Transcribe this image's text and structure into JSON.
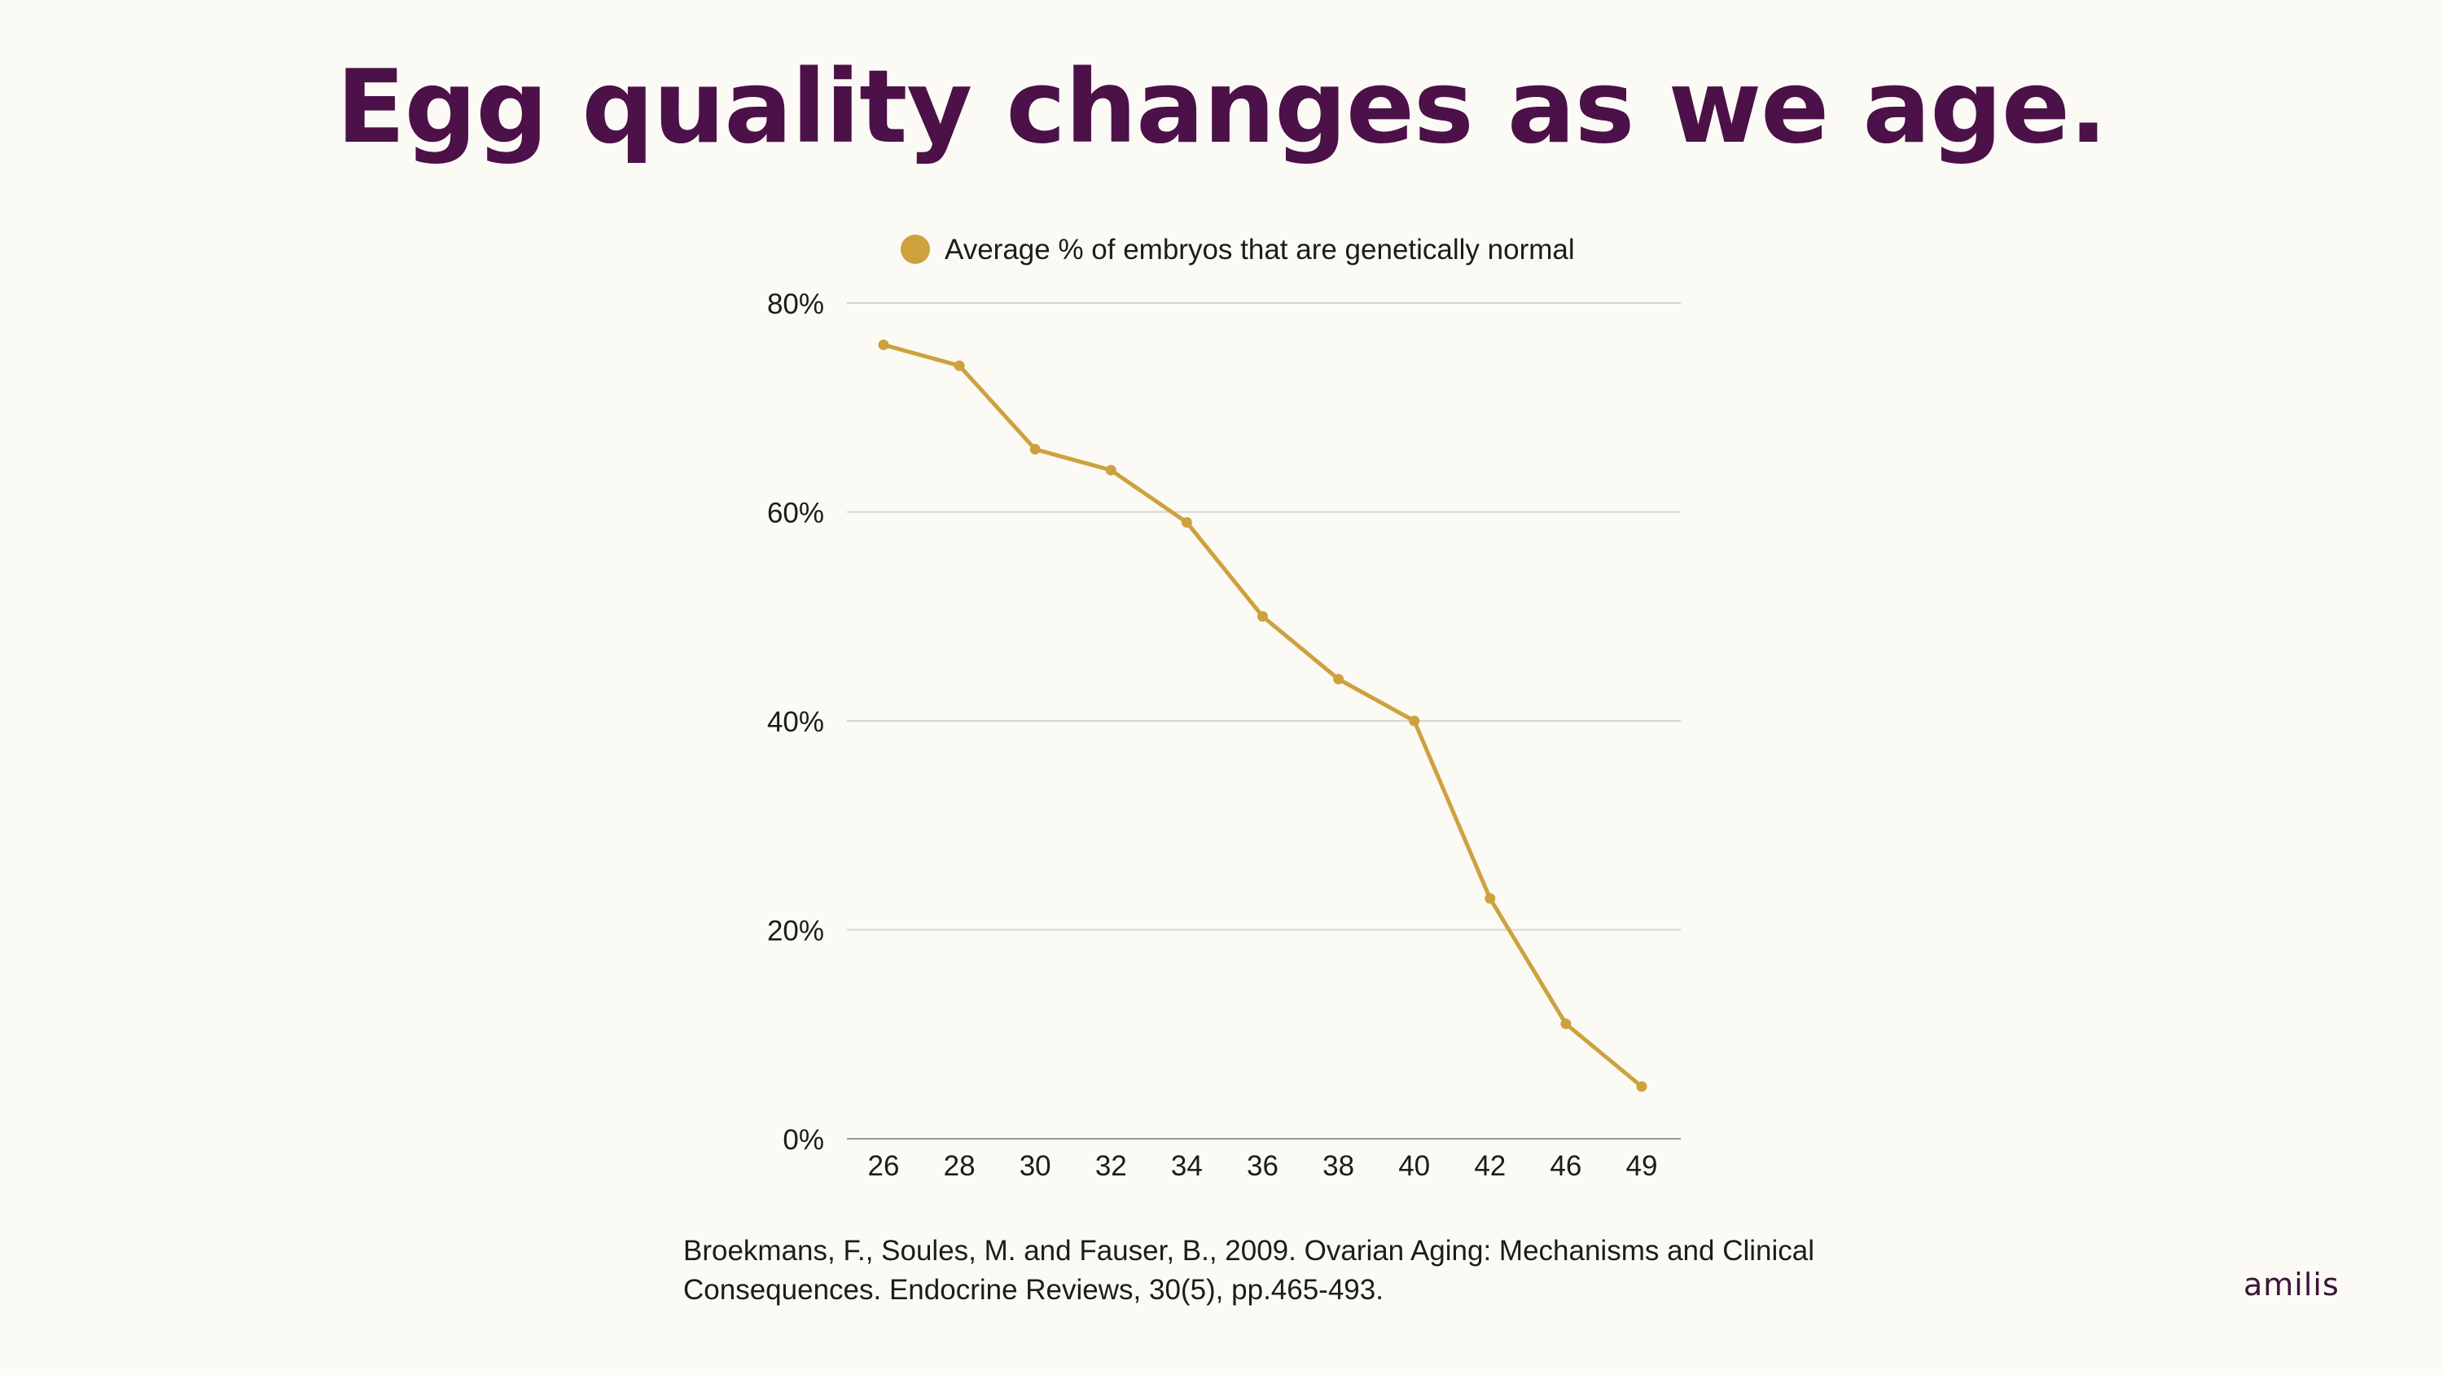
{
  "slide": {
    "title": "Egg quality changes as we age.",
    "citation": "Broekmans, F., Soules, M. and Fauser, B., 2009. Ovarian Aging: Mechanisms and Clinical Consequences. Endocrine Reviews, 30(5), pp.465-493.",
    "brand": "amilis"
  },
  "colors": {
    "title": "#4b1148",
    "series": "#cda23e",
    "grid": "#d8d6d1",
    "axis": "#9a9893",
    "text": "#1c1c1c"
  },
  "chart_data": {
    "type": "line",
    "title": "",
    "xlabel": "",
    "ylabel": "",
    "categories": [
      "26",
      "28",
      "30",
      "32",
      "34",
      "36",
      "38",
      "40",
      "42",
      "46",
      "49"
    ],
    "series": [
      {
        "name": "Average % of embryos that are genetically normal",
        "values": [
          76,
          74,
          66,
          64,
          59,
          50,
          44,
          40,
          23,
          11,
          5
        ]
      }
    ],
    "ylim": [
      0,
      80
    ],
    "yticks": [
      0,
      20,
      40,
      60,
      80
    ],
    "ytick_labels": [
      "0%",
      "20%",
      "40%",
      "60%",
      "80%"
    ],
    "grid": true,
    "legend": "top"
  }
}
